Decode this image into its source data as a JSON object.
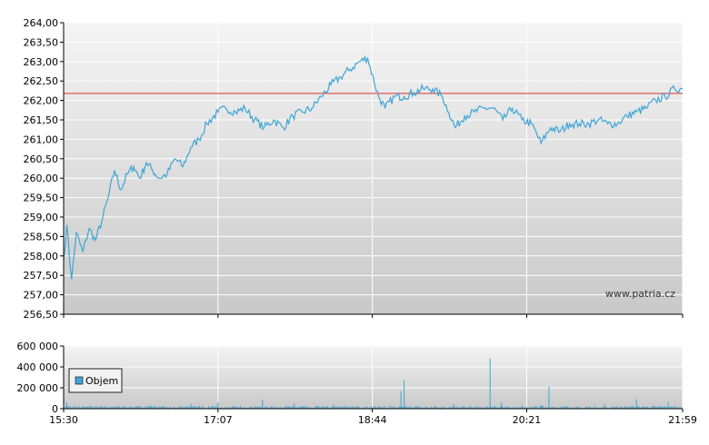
{
  "chart_data": [
    {
      "type": "line",
      "x_ticks": [
        "15:30",
        "17:07",
        "18:44",
        "20:21",
        "21:59"
      ],
      "x_range": [
        "15:30",
        "21:59"
      ],
      "y_ticks": [
        "264,00",
        "263,50",
        "263,00",
        "262,50",
        "262,00",
        "261,50",
        "261,00",
        "260,50",
        "260,00",
        "259,50",
        "259,00",
        "258,50",
        "258,00",
        "257,50",
        "257,00",
        "256,50"
      ],
      "ylim": [
        256.5,
        264.0
      ],
      "reference_line": 262.18,
      "grid": true,
      "watermark": "www.patria.cz",
      "series": [
        {
          "color": "#3fa5d4",
          "points": [
            [
              "15:30",
              257.9
            ],
            [
              "15:32",
              258.8
            ],
            [
              "15:35",
              257.4
            ],
            [
              "15:38",
              258.6
            ],
            [
              "15:42",
              258.1
            ],
            [
              "15:46",
              258.7
            ],
            [
              "15:50",
              258.4
            ],
            [
              "15:54",
              258.9
            ],
            [
              "15:58",
              259.5
            ],
            [
              "16:02",
              260.2
            ],
            [
              "16:06",
              259.7
            ],
            [
              "16:10",
              260.1
            ],
            [
              "16:14",
              260.3
            ],
            [
              "16:18",
              260.0
            ],
            [
              "16:22",
              260.4
            ],
            [
              "16:26",
              260.2
            ],
            [
              "16:30",
              260.0
            ],
            [
              "16:35",
              260.1
            ],
            [
              "16:40",
              260.5
            ],
            [
              "16:45",
              260.3
            ],
            [
              "16:50",
              260.8
            ],
            [
              "16:55",
              261.0
            ],
            [
              "17:00",
              261.4
            ],
            [
              "17:07",
              261.7
            ],
            [
              "17:12",
              261.8
            ],
            [
              "17:18",
              261.7
            ],
            [
              "17:24",
              261.8
            ],
            [
              "17:30",
              261.5
            ],
            [
              "17:36",
              261.3
            ],
            [
              "17:42",
              261.5
            ],
            [
              "17:48",
              261.3
            ],
            [
              "17:54",
              261.6
            ],
            [
              "18:00",
              261.7
            ],
            [
              "18:06",
              261.8
            ],
            [
              "18:12",
              262.1
            ],
            [
              "18:18",
              262.4
            ],
            [
              "18:24",
              262.6
            ],
            [
              "18:30",
              262.8
            ],
            [
              "18:36",
              263.0
            ],
            [
              "18:41",
              263.1
            ],
            [
              "18:45",
              262.5
            ],
            [
              "18:48",
              262.1
            ],
            [
              "18:52",
              261.8
            ],
            [
              "18:58",
              262.1
            ],
            [
              "19:04",
              262.1
            ],
            [
              "19:10",
              262.2
            ],
            [
              "19:16",
              262.3
            ],
            [
              "19:22",
              262.3
            ],
            [
              "19:28",
              262.1
            ],
            [
              "19:32",
              261.7
            ],
            [
              "19:36",
              261.3
            ],
            [
              "19:42",
              261.6
            ],
            [
              "19:48",
              261.7
            ],
            [
              "19:54",
              261.8
            ],
            [
              "20:00",
              261.8
            ],
            [
              "20:06",
              261.5
            ],
            [
              "20:12",
              261.8
            ],
            [
              "20:18",
              261.5
            ],
            [
              "20:24",
              261.4
            ],
            [
              "20:30",
              260.9
            ],
            [
              "20:36",
              261.3
            ],
            [
              "20:42",
              261.2
            ],
            [
              "20:48",
              261.4
            ],
            [
              "20:54",
              261.4
            ],
            [
              "21:00",
              261.4
            ],
            [
              "21:06",
              261.5
            ],
            [
              "21:12",
              261.4
            ],
            [
              "21:18",
              261.4
            ],
            [
              "21:24",
              261.6
            ],
            [
              "21:30",
              261.7
            ],
            [
              "21:36",
              261.8
            ],
            [
              "21:42",
              262.0
            ],
            [
              "21:48",
              262.1
            ],
            [
              "21:54",
              262.3
            ],
            [
              "21:59",
              262.3
            ]
          ]
        }
      ]
    },
    {
      "type": "bar",
      "x_ticks": [
        "15:30",
        "17:07",
        "18:44",
        "20:21",
        "21:59"
      ],
      "x_range": [
        "15:30",
        "21:59"
      ],
      "y_ticks": [
        "600 000",
        "400 000",
        "200 000",
        "0"
      ],
      "ylim": [
        0,
        600000
      ],
      "grid": true,
      "legend": "top-left",
      "series": [
        {
          "name": "Objem",
          "color": "#3fa5d4",
          "baseline_volume": 25000,
          "spikes": [
            [
              "15:32",
              60000
            ],
            [
              "16:25",
              30000
            ],
            [
              "16:50",
              45000
            ],
            [
              "17:07",
              60000
            ],
            [
              "17:35",
              85000
            ],
            [
              "17:55",
              50000
            ],
            [
              "18:20",
              40000
            ],
            [
              "18:55",
              30000
            ],
            [
              "19:02",
              170000
            ],
            [
              "19:04",
              270000
            ],
            [
              "19:35",
              45000
            ],
            [
              "19:58",
              480000
            ],
            [
              "20:05",
              60000
            ],
            [
              "20:30",
              35000
            ],
            [
              "20:35",
              210000
            ],
            [
              "21:10",
              40000
            ],
            [
              "21:30",
              90000
            ],
            [
              "21:50",
              60000
            ]
          ]
        }
      ]
    }
  ]
}
